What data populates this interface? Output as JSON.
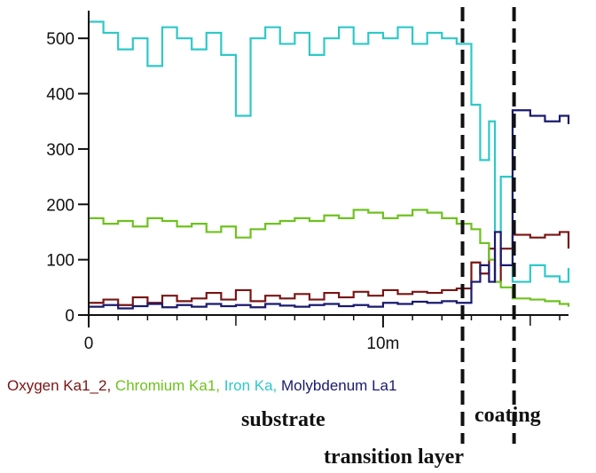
{
  "chart_data": {
    "type": "line",
    "title": "",
    "xlabel": "",
    "ylabel": "",
    "xlim": [
      0,
      16.3
    ],
    "ylim": [
      0,
      550
    ],
    "x_ticks": [
      {
        "value": 0,
        "label": "0"
      },
      {
        "value": 10,
        "label": "10m"
      }
    ],
    "y_ticks": [
      {
        "value": 0,
        "label": "0"
      },
      {
        "value": 100,
        "label": "100"
      },
      {
        "value": 200,
        "label": "200"
      },
      {
        "value": 300,
        "label": "300"
      },
      {
        "value": 400,
        "label": "400"
      },
      {
        "value": 500,
        "label": "500"
      }
    ],
    "grid": false,
    "legend_position": "bottom",
    "legend_separator": ", ",
    "series": [
      {
        "name": "Oxygen Ka1_2",
        "color": "#7a1414",
        "points": [
          [
            0,
            22
          ],
          [
            0.5,
            28
          ],
          [
            1,
            18
          ],
          [
            1.5,
            32
          ],
          [
            2,
            22
          ],
          [
            2.5,
            35
          ],
          [
            3,
            25
          ],
          [
            3.5,
            30
          ],
          [
            4,
            40
          ],
          [
            4.5,
            28
          ],
          [
            5,
            45
          ],
          [
            5.5,
            25
          ],
          [
            6,
            35
          ],
          [
            6.5,
            30
          ],
          [
            7,
            38
          ],
          [
            7.5,
            28
          ],
          [
            8,
            40
          ],
          [
            8.5,
            32
          ],
          [
            9,
            42
          ],
          [
            9.5,
            35
          ],
          [
            10,
            45
          ],
          [
            10.5,
            38
          ],
          [
            11,
            42
          ],
          [
            11.5,
            40
          ],
          [
            12,
            45
          ],
          [
            12.5,
            48
          ],
          [
            13,
            95
          ],
          [
            13.3,
            75
          ],
          [
            13.6,
            120
          ],
          [
            13.8,
            60
          ],
          [
            14,
            120
          ],
          [
            14.4,
            145
          ],
          [
            15,
            140
          ],
          [
            15.5,
            145
          ],
          [
            16,
            150
          ],
          [
            16.3,
            120
          ]
        ]
      },
      {
        "name": "Chromium Ka1",
        "color": "#6ec21e",
        "points": [
          [
            0,
            175
          ],
          [
            0.5,
            165
          ],
          [
            1,
            170
          ],
          [
            1.5,
            160
          ],
          [
            2,
            175
          ],
          [
            2.5,
            170
          ],
          [
            3,
            160
          ],
          [
            3.5,
            165
          ],
          [
            4,
            150
          ],
          [
            4.5,
            160
          ],
          [
            5,
            140
          ],
          [
            5.5,
            155
          ],
          [
            6,
            165
          ],
          [
            6.5,
            170
          ],
          [
            7,
            175
          ],
          [
            7.5,
            170
          ],
          [
            8,
            180
          ],
          [
            8.5,
            175
          ],
          [
            9,
            190
          ],
          [
            9.5,
            185
          ],
          [
            10,
            175
          ],
          [
            10.5,
            180
          ],
          [
            11,
            190
          ],
          [
            11.5,
            185
          ],
          [
            12,
            175
          ],
          [
            12.5,
            165
          ],
          [
            13,
            155
          ],
          [
            13.3,
            130
          ],
          [
            13.6,
            100
          ],
          [
            13.8,
            60
          ],
          [
            14,
            50
          ],
          [
            14.4,
            30
          ],
          [
            15,
            28
          ],
          [
            15.5,
            25
          ],
          [
            16,
            20
          ],
          [
            16.3,
            15
          ]
        ]
      },
      {
        "name": "Iron Ka",
        "color": "#2ec8c8",
        "points": [
          [
            0,
            530
          ],
          [
            0.5,
            510
          ],
          [
            1,
            480
          ],
          [
            1.5,
            500
          ],
          [
            2,
            450
          ],
          [
            2.5,
            520
          ],
          [
            3,
            500
          ],
          [
            3.5,
            480
          ],
          [
            4,
            510
          ],
          [
            4.5,
            470
          ],
          [
            5,
            360
          ],
          [
            5.5,
            500
          ],
          [
            6,
            520
          ],
          [
            6.5,
            490
          ],
          [
            7,
            510
          ],
          [
            7.5,
            470
          ],
          [
            8,
            500
          ],
          [
            8.5,
            520
          ],
          [
            9,
            490
          ],
          [
            9.5,
            510
          ],
          [
            10,
            500
          ],
          [
            10.5,
            520
          ],
          [
            11,
            490
          ],
          [
            11.5,
            510
          ],
          [
            12,
            500
          ],
          [
            12.5,
            490
          ],
          [
            13,
            380
          ],
          [
            13.3,
            280
          ],
          [
            13.6,
            350
          ],
          [
            13.8,
            150
          ],
          [
            14,
            250
          ],
          [
            14.4,
            60
          ],
          [
            15,
            90
          ],
          [
            15.5,
            70
          ],
          [
            16,
            60
          ],
          [
            16.3,
            85
          ]
        ]
      },
      {
        "name": "Molybdenum La1",
        "color": "#1a1a6e",
        "points": [
          [
            0,
            15
          ],
          [
            0.5,
            18
          ],
          [
            1,
            12
          ],
          [
            1.5,
            16
          ],
          [
            2,
            20
          ],
          [
            2.5,
            14
          ],
          [
            3,
            18
          ],
          [
            3.5,
            15
          ],
          [
            4,
            20
          ],
          [
            4.5,
            16
          ],
          [
            5,
            18
          ],
          [
            5.5,
            14
          ],
          [
            6,
            20
          ],
          [
            6.5,
            17
          ],
          [
            7,
            15
          ],
          [
            7.5,
            18
          ],
          [
            8,
            20
          ],
          [
            8.5,
            16
          ],
          [
            9,
            18
          ],
          [
            9.5,
            15
          ],
          [
            10,
            22
          ],
          [
            10.5,
            20
          ],
          [
            11,
            24
          ],
          [
            11.5,
            22
          ],
          [
            12,
            25
          ],
          [
            12.5,
            22
          ],
          [
            13,
            60
          ],
          [
            13.3,
            90
          ],
          [
            13.6,
            60
          ],
          [
            13.8,
            150
          ],
          [
            14,
            90
          ],
          [
            14.4,
            370
          ],
          [
            15,
            360
          ],
          [
            15.5,
            350
          ],
          [
            16,
            360
          ],
          [
            16.3,
            345
          ]
        ]
      }
    ],
    "boundaries": [
      12.7,
      14.45
    ],
    "regions": [
      {
        "label": "substrate",
        "position": "below"
      },
      {
        "label": "transition layer",
        "position": "bottom"
      },
      {
        "label": "coating",
        "position": "below"
      }
    ]
  }
}
